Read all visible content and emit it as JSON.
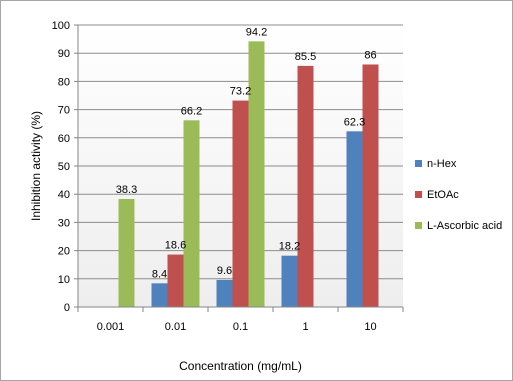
{
  "chart_data": {
    "type": "bar",
    "xlabel": "Concentration (mg/mL)",
    "ylabel": "Inhibition  activity (%)",
    "categories": [
      "0.001",
      "0.01",
      "0.1",
      "1",
      "10"
    ],
    "ylim": [
      0,
      100
    ],
    "yticks": [
      0,
      10,
      20,
      30,
      40,
      50,
      60,
      70,
      80,
      90,
      100
    ],
    "grid": true,
    "legend_position": "right",
    "series": [
      {
        "name": "n-Hex",
        "color": "#4f81bd",
        "values": [
          null,
          8.4,
          9.6,
          18.2,
          62.3
        ]
      },
      {
        "name": "EtOAc",
        "color": "#c0504d",
        "values": [
          null,
          18.6,
          73.2,
          85.5,
          86
        ]
      },
      {
        "name": "L-Ascorbic acid",
        "color": "#9bbb59",
        "values": [
          38.3,
          66.2,
          94.2,
          null,
          null
        ]
      }
    ]
  }
}
